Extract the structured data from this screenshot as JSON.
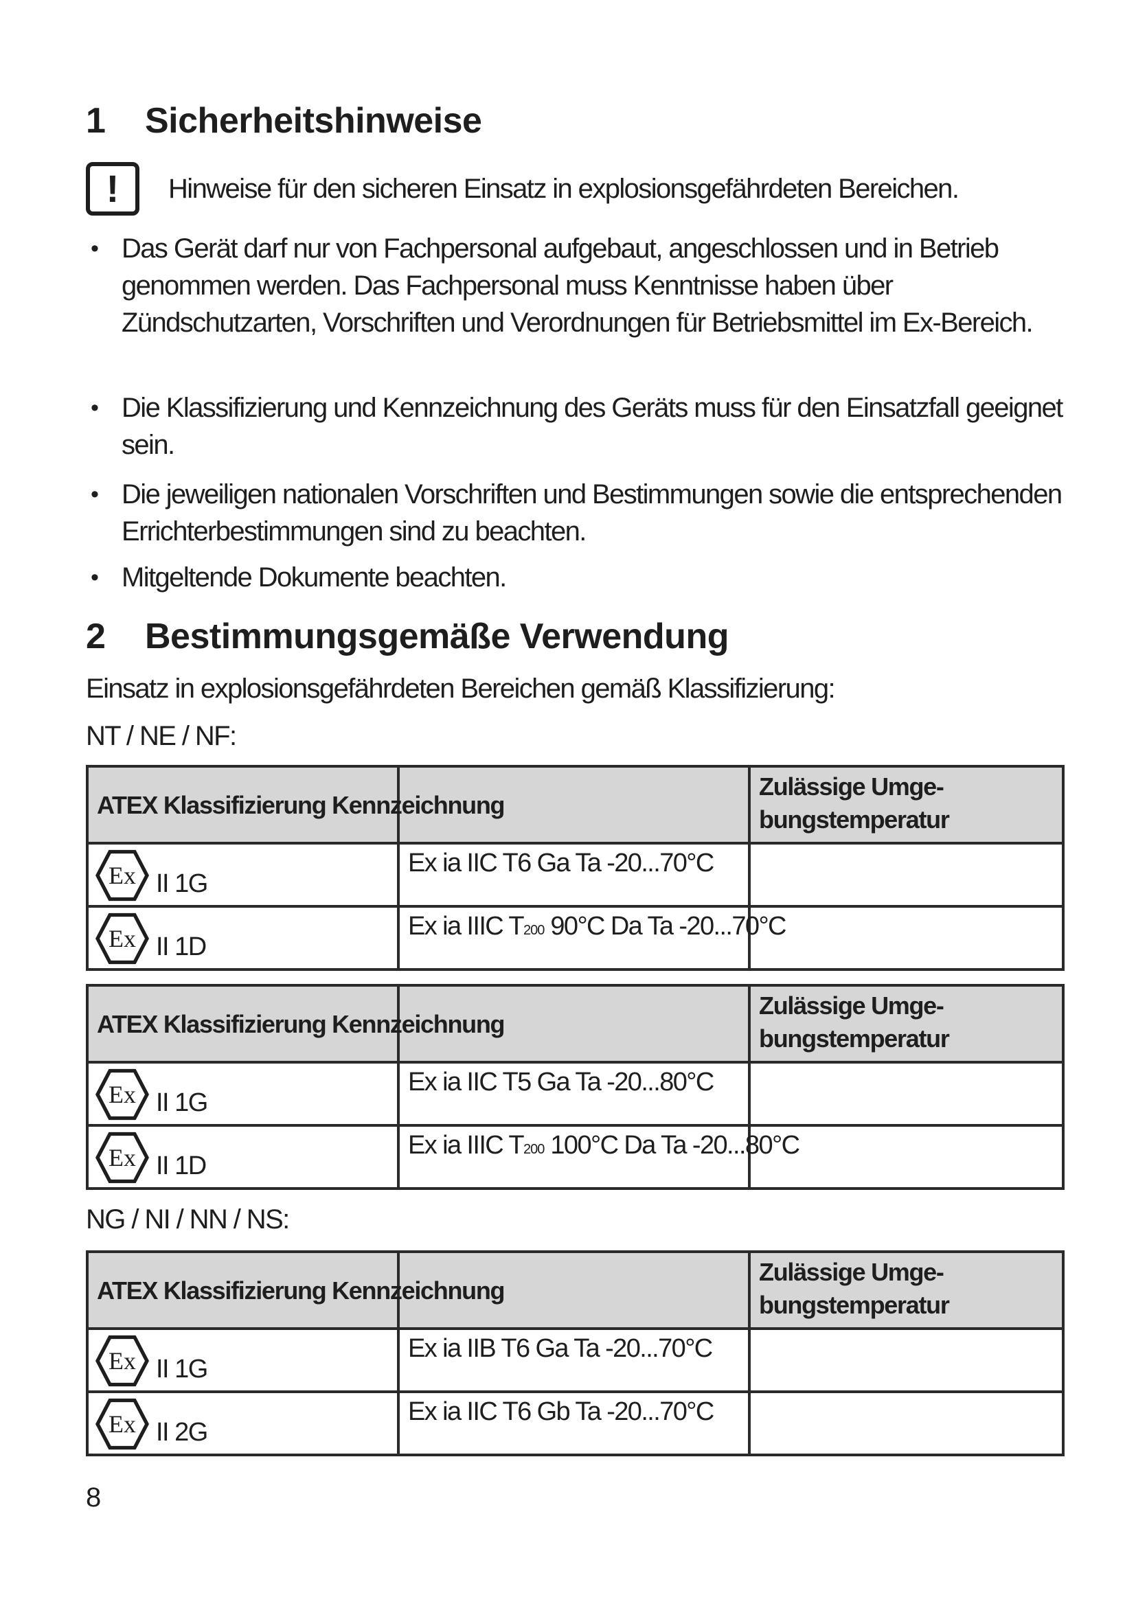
{
  "section1": {
    "number": "1",
    "title": "Sicherheitshinweise",
    "warning_icon": "exclamation-box-icon",
    "intro": "Hinweise für den sicheren Einsatz in explosionsgefährdeten Bereichen.",
    "bullets": [
      "Das Gerät darf nur von Fachpersonal aufgebaut, angeschlossen und in Betrieb genommen werden. Das Fachpersonal muss Kenntnisse haben über Zündschutzarten, Vorschriften und Verordnungen für Betriebsmittel im Ex-Bereich.",
      "Die Klassifizierung und Kennzeichnung des Geräts muss für den Einsatzfall geeignet sein.",
      "Die jeweiligen nationalen Vorschriften und Bestimmungen sowie die entsprechenden Errichterbestimmungen sind zu beachten.",
      "Mitgeltende Dokumente beachten."
    ]
  },
  "section2": {
    "number": "2",
    "title": "Bestimmungsgemäße Verwendung",
    "intro": "Einsatz in explosionsgefährdeten Bereichen gemäß Klassifizierung:",
    "group1_label": "NT / NE / NF:",
    "group2_label": "NG / NI / NN / NS:",
    "header": {
      "col1": "ATEX Klassifizierung Kennzeichnung",
      "col3": "Zulässige Umge-bungstemperatur"
    },
    "tables": [
      {
        "rows": [
          {
            "class": "II 1G",
            "marking": "Ex ia IIC T6 Ga Ta -20...70°C",
            "sub": "",
            "suffix": "",
            "temp": ""
          },
          {
            "class": "II 1D",
            "marking": "Ex ia IIIC T",
            "sub": "200",
            "suffix": " 90°C Da Ta -20...70°C",
            "temp": ""
          }
        ]
      },
      {
        "rows": [
          {
            "class": "II 1G",
            "marking": "Ex ia IIC T5 Ga Ta -20...80°C",
            "sub": "",
            "suffix": "",
            "temp": ""
          },
          {
            "class": "II 1D",
            "marking": "Ex ia IIIC T",
            "sub": "200",
            "suffix": " 100°C Da Ta -20...80°C",
            "temp": ""
          }
        ]
      },
      {
        "rows": [
          {
            "class": "II 1G",
            "marking": "Ex ia IIB T6 Ga Ta -20...70°C",
            "sub": "",
            "suffix": "",
            "temp": ""
          },
          {
            "class": "II 2G",
            "marking": "Ex ia IIC T6 Gb Ta -20...70°C",
            "sub": "",
            "suffix": "",
            "temp": ""
          }
        ]
      }
    ]
  },
  "page_number": "8"
}
